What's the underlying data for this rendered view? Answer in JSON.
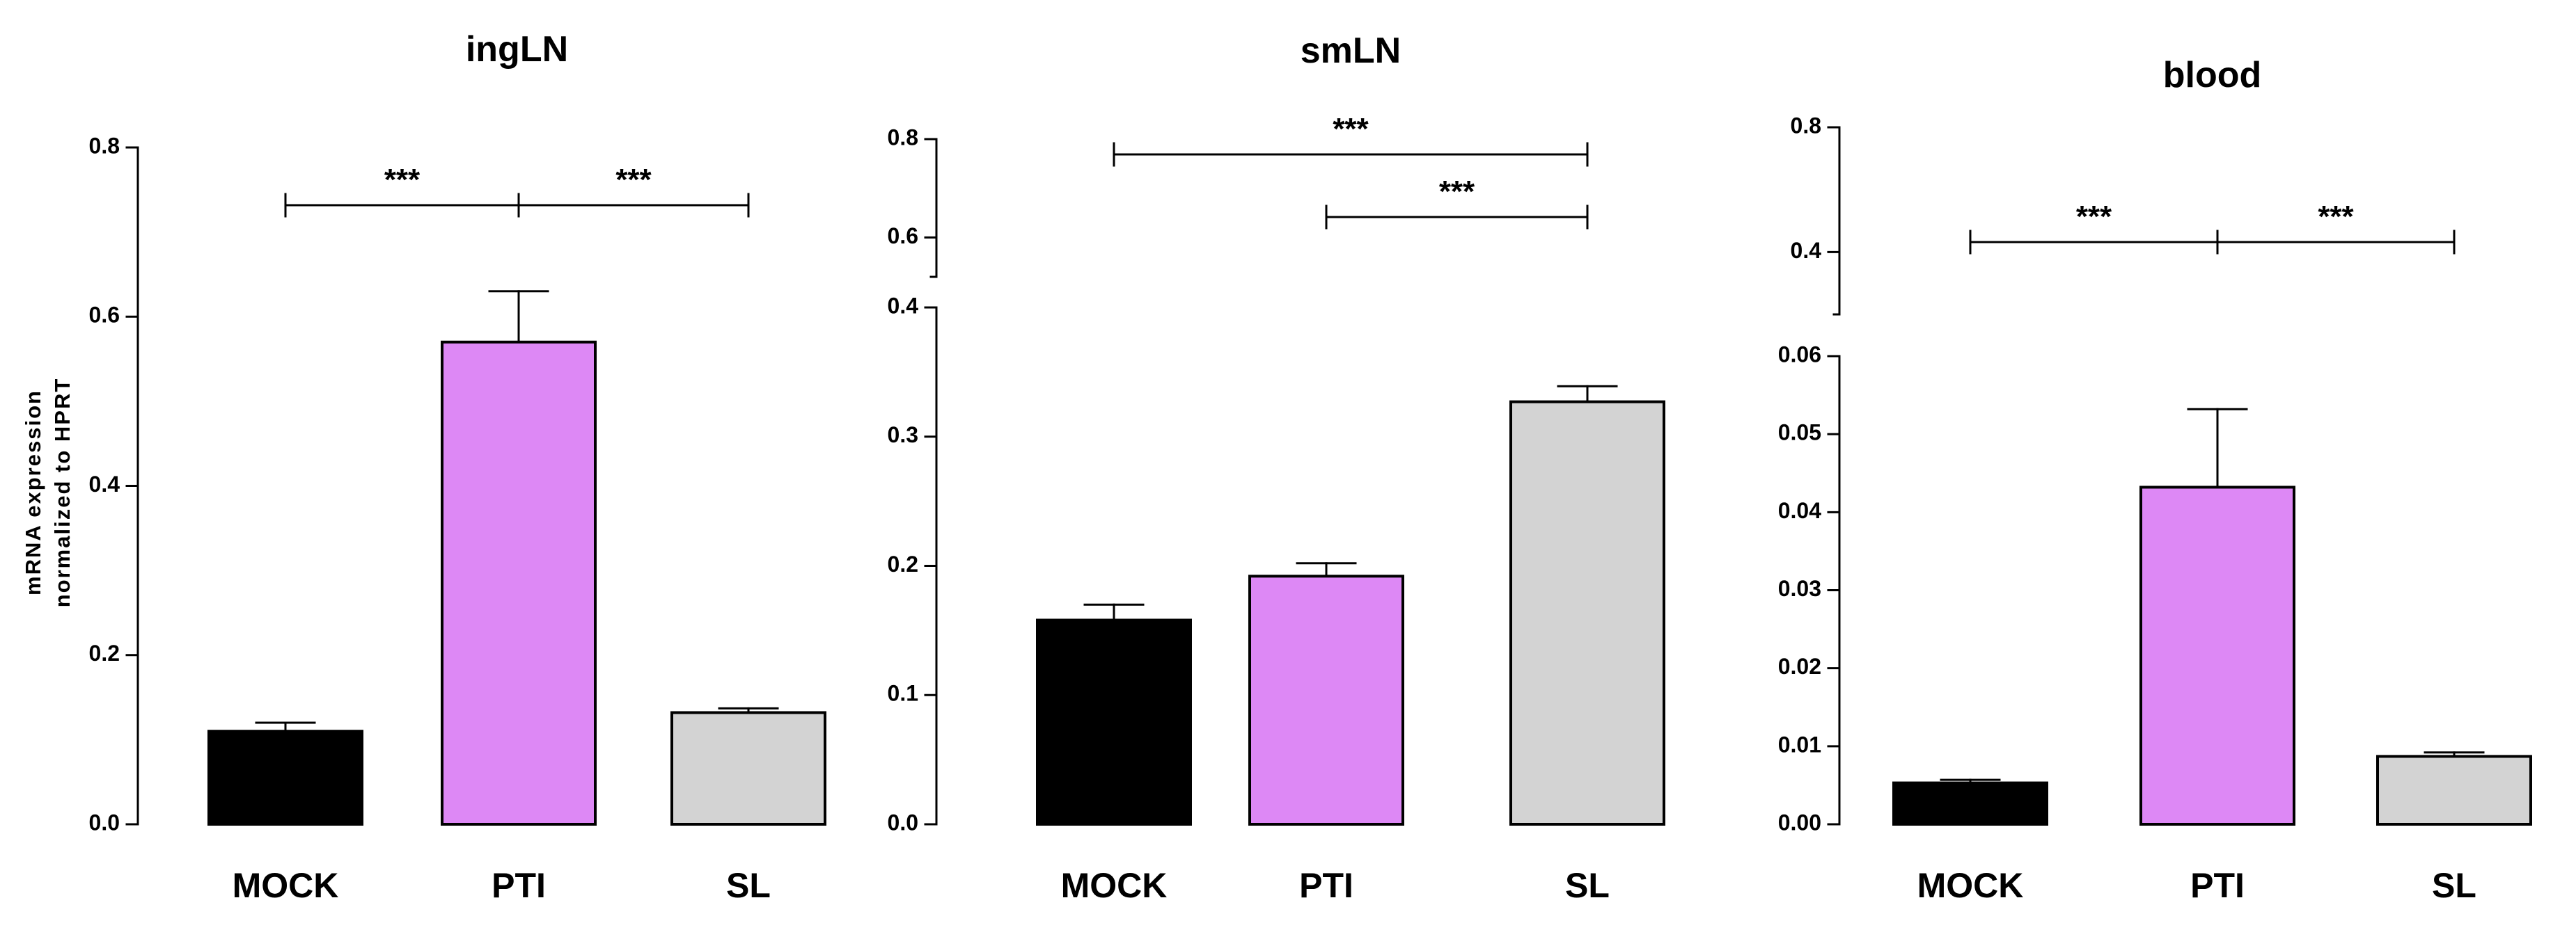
{
  "colors": {
    "MOCK": "#000000",
    "PTI": "#dd88f5",
    "SL": "#d3d3d3",
    "axis": "#000000",
    "background": "#ffffff"
  },
  "ylabel_lines": [
    "mRNA expression",
    "normalized to HPRT"
  ],
  "chart_data": [
    {
      "type": "bar",
      "title": "ingLN",
      "categories": [
        "MOCK",
        "PTI",
        "SL"
      ],
      "values": [
        0.11,
        0.57,
        0.132
      ],
      "errors": [
        0.01,
        0.06,
        0.005
      ],
      "ylabel": "mRNA expression normalized to HPRT",
      "xlabel": "",
      "ylim": [
        0,
        0.8
      ],
      "y_ticks": [
        0.0,
        0.2,
        0.4,
        0.6,
        0.8
      ],
      "y_tick_labels": [
        "0.0",
        "0.2",
        "0.4",
        "0.6",
        "0.8"
      ],
      "broken_axis": false,
      "significance": [
        {
          "from": "MOCK",
          "to": "PTI",
          "label": "***"
        },
        {
          "from": "PTI",
          "to": "SL",
          "label": "***"
        }
      ],
      "grid": false
    },
    {
      "type": "bar",
      "title": "smLN",
      "categories": [
        "MOCK",
        "PTI",
        "SL"
      ],
      "values": [
        0.158,
        0.192,
        0.327
      ],
      "errors": [
        0.012,
        0.01,
        0.012
      ],
      "ylabel": "",
      "xlabel": "",
      "ylim": [
        0,
        0.8
      ],
      "broken_axis": true,
      "lower_range": [
        0,
        0.4
      ],
      "upper_range": [
        0.52,
        0.8
      ],
      "y_ticks_lower": [
        0.0,
        0.1,
        0.2,
        0.3,
        0.4
      ],
      "y_tick_labels_lower": [
        "0.0",
        "0.1",
        "0.2",
        "0.3",
        "0.4"
      ],
      "y_ticks_upper": [
        0.6,
        0.8
      ],
      "y_tick_labels_upper": [
        "0.6",
        "0.8"
      ],
      "significance": [
        {
          "from": "MOCK",
          "to": "SL",
          "label": "***"
        },
        {
          "from": "PTI",
          "to": "SL",
          "label": "***"
        }
      ],
      "grid": false
    },
    {
      "type": "bar",
      "title": "blood",
      "categories": [
        "MOCK",
        "PTI",
        "SL"
      ],
      "values": [
        0.0053,
        0.0432,
        0.0087
      ],
      "errors": [
        0.0004,
        0.01,
        0.0005
      ],
      "ylabel": "",
      "xlabel": "",
      "ylim": [
        0,
        0.8
      ],
      "broken_axis": true,
      "lower_range": [
        0,
        0.06
      ],
      "upper_range": [
        0.2,
        0.8
      ],
      "y_ticks_lower": [
        0.0,
        0.01,
        0.02,
        0.03,
        0.04,
        0.05,
        0.06
      ],
      "y_tick_labels_lower": [
        "0.00",
        "0.01",
        "0.02",
        "0.03",
        "0.04",
        "0.05",
        "0.06"
      ],
      "y_ticks_upper": [
        0.4,
        0.8
      ],
      "y_tick_labels_upper": [
        "0.4",
        "0.8"
      ],
      "significance": [
        {
          "from": "MOCK",
          "to": "PTI",
          "label": "***"
        },
        {
          "from": "PTI",
          "to": "SL",
          "label": "***"
        }
      ],
      "grid": false
    }
  ]
}
